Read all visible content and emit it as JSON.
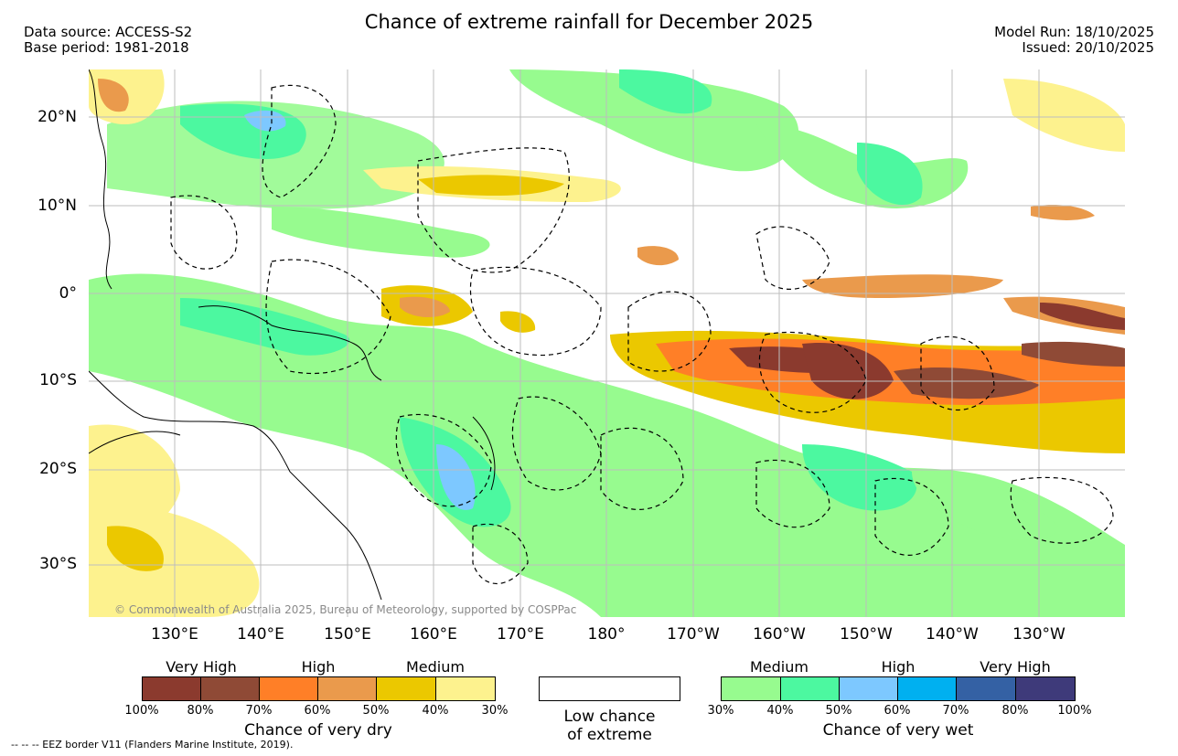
{
  "header": {
    "title": "Chance of extreme rainfall for December 2025",
    "data_source": "Data source: ACCESS-S2",
    "base_period": "Base period: 1981-2018",
    "model_run": "Model Run: 18/10/2025",
    "issued": "Issued: 20/10/2025"
  },
  "map": {
    "lat_labels": [
      "20°N",
      "10°N",
      "0°",
      "10°S",
      "20°S",
      "30°S"
    ],
    "lon_labels": [
      "130°E",
      "140°E",
      "150°E",
      "160°E",
      "170°E",
      "180°",
      "170°W",
      "160°W",
      "150°W",
      "140°W",
      "130°W"
    ],
    "copyright": "© Commonwealth of Australia 2025, Bureau of Meteorology, supported by COSPPac"
  },
  "legend_dry": {
    "headers": [
      "Very High",
      "High",
      "Medium"
    ],
    "ticks": [
      "100%",
      "80%",
      "70%",
      "60%",
      "50%",
      "40%",
      "30%"
    ],
    "colors": [
      "#8b3a2e",
      "#8f4a36",
      "#ff7f27",
      "#ea9a4c",
      "#ebc800",
      "#fdf28e"
    ],
    "caption": "Chance of very dry"
  },
  "legend_none": {
    "caption_line1": "Low chance",
    "caption_line2": "of extreme"
  },
  "legend_wet": {
    "headers": [
      "Medium",
      "High",
      "Very High"
    ],
    "ticks": [
      "30%",
      "40%",
      "50%",
      "60%",
      "70%",
      "80%",
      "100%"
    ],
    "colors": [
      "#97fb8f",
      "#4cf8a0",
      "#7dc8ff",
      "#00b0f0",
      "#3461a4",
      "#3e3a7a"
    ],
    "caption": "Chance of very wet"
  },
  "footer": {
    "eez_note": "--  --  -- EEZ border V11 (Flanders Marine Institute, 2019)."
  }
}
